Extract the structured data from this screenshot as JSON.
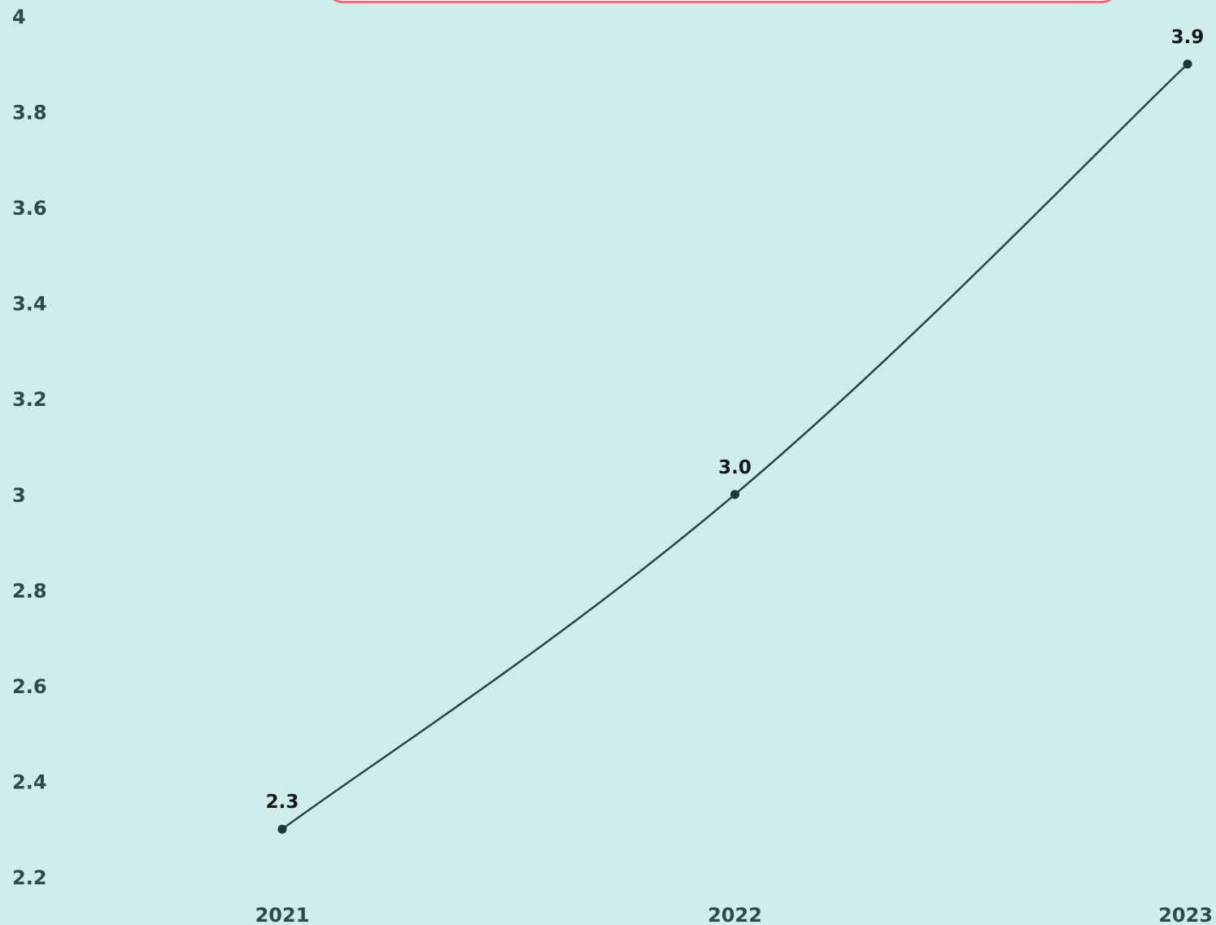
{
  "chart_data": {
    "type": "line",
    "categories": [
      "2021",
      "2022",
      "2023"
    ],
    "series": [
      {
        "values": [
          2.3,
          3.0,
          3.9
        ],
        "data_labels": [
          "2.3",
          "3.0",
          "3.9"
        ]
      }
    ],
    "yticks": [
      "2.2",
      "2.4",
      "2.6",
      "2.8",
      "3",
      "3.2",
      "3.4",
      "3.6",
      "3.8",
      "4"
    ],
    "ylim": [
      2.2,
      4.0
    ],
    "grid": false,
    "legend": "none",
    "line_style": "smooth",
    "colors": {
      "background": "#cdecea",
      "line": "#1f4a4c",
      "marker": "#163c3e",
      "title_box_border": "#f06a7a"
    }
  }
}
